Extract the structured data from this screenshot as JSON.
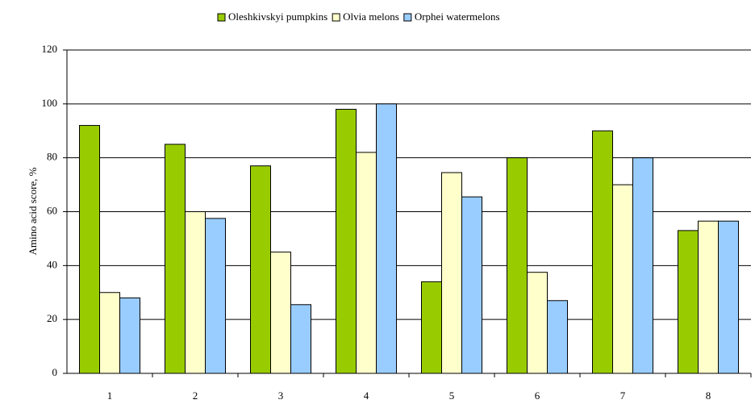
{
  "chart_data": {
    "type": "bar",
    "y_label": "Amino acid score, %",
    "categories": [
      "1",
      "2",
      "3",
      "4",
      "5",
      "6",
      "7",
      "8"
    ],
    "series": [
      {
        "name": "Oleshkivskyi pumpkins",
        "color": "#99cc00",
        "values": [
          92,
          85,
          77,
          98,
          34,
          80,
          90,
          53
        ]
      },
      {
        "name": "Olvia melons",
        "color": "#ffffcc",
        "values": [
          30,
          60,
          45,
          82,
          74.5,
          37.5,
          70,
          56.5
        ]
      },
      {
        "name": "Orphei watermelons",
        "color": "#99ccff",
        "values": [
          28,
          57.5,
          25.5,
          100,
          65.5,
          27,
          80,
          56.5
        ]
      }
    ],
    "ylim": [
      0,
      120
    ],
    "yticks": [
      0,
      20,
      40,
      60,
      80,
      100,
      120
    ],
    "grid": true,
    "legend": "top"
  }
}
